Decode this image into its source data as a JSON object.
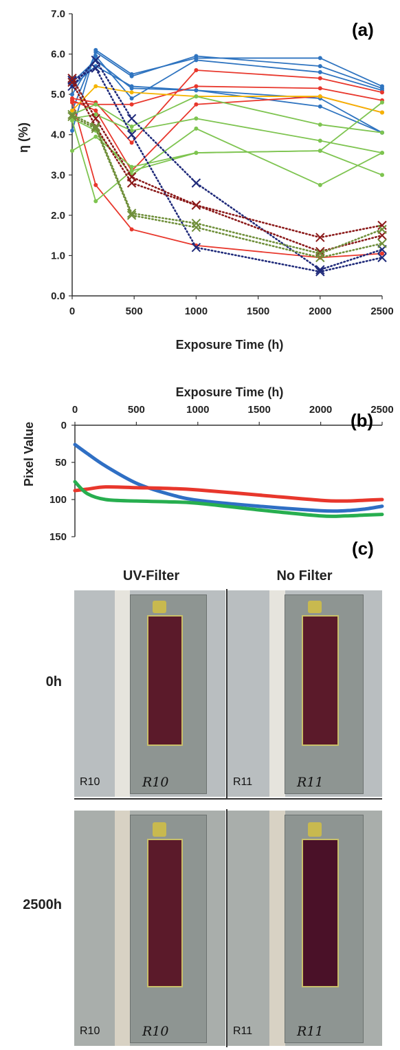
{
  "chart_data": [
    {
      "panel": "(a)",
      "type": "line",
      "xlabel": "Exposure Time (h)",
      "ylabel": "η (%)",
      "xlim": [
        0,
        2500
      ],
      "ylim": [
        0.0,
        7.0
      ],
      "xticks": [
        "0",
        "500",
        "1000",
        "1500",
        "2000",
        "2500"
      ],
      "yticks": [
        "0.0",
        "1.0",
        "2.0",
        "3.0",
        "4.0",
        "5.0",
        "6.0",
        "7.0"
      ],
      "x": [
        0,
        190,
        480,
        1000,
        2000,
        2500
      ],
      "series": [
        {
          "color": "#2f74c0",
          "style": "solid",
          "values": [
            4.1,
            6.1,
            5.5,
            5.9,
            5.9,
            5.2
          ]
        },
        {
          "color": "#2f74c0",
          "style": "solid",
          "values": [
            4.6,
            6.05,
            5.45,
            5.95,
            5.7,
            5.15
          ]
        },
        {
          "color": "#2f74c0",
          "style": "solid",
          "values": [
            5.0,
            5.95,
            4.9,
            5.85,
            5.55,
            5.1
          ]
        },
        {
          "color": "#2f74c0",
          "style": "solid",
          "values": [
            5.2,
            5.7,
            5.2,
            5.1,
            4.7,
            4.05
          ]
        },
        {
          "color": "#2f74c0",
          "style": "solid",
          "values": [
            5.3,
            5.85,
            5.15,
            5.1,
            4.9,
            4.05
          ]
        },
        {
          "color": "#e8372c",
          "style": "solid",
          "values": [
            4.9,
            4.8,
            3.8,
            5.6,
            5.4,
            5.05
          ]
        },
        {
          "color": "#e8372c",
          "style": "solid",
          "values": [
            4.8,
            4.75,
            4.75,
            5.2,
            5.15,
            4.85
          ]
        },
        {
          "color": "#e8372c",
          "style": "solid",
          "values": [
            4.85,
            4.6,
            3.1,
            4.75,
            4.95,
            4.55
          ]
        },
        {
          "color": "#e8372c",
          "style": "solid",
          "values": [
            4.85,
            2.75,
            1.65,
            1.25,
            0.95,
            1.05
          ]
        },
        {
          "color": "#f5b400",
          "style": "solid",
          "values": [
            4.6,
            5.2,
            5.05,
            4.95,
            4.95,
            4.55
          ]
        },
        {
          "color": "#7ec450",
          "style": "solid",
          "values": [
            4.5,
            4.75,
            4.2,
            4.95,
            4.25,
            4.05
          ]
        },
        {
          "color": "#7ec450",
          "style": "solid",
          "values": [
            4.4,
            4.5,
            4.1,
            4.4,
            3.85,
            3.55
          ]
        },
        {
          "color": "#7ec450",
          "style": "solid",
          "values": [
            4.4,
            4.1,
            3.0,
            4.15,
            2.75,
            3.55
          ]
        },
        {
          "color": "#7ec450",
          "style": "solid",
          "values": [
            3.6,
            3.95,
            3.2,
            3.55,
            3.6,
            4.8
          ]
        },
        {
          "color": "#7ec450",
          "style": "solid",
          "values": [
            4.35,
            2.35,
            3.1,
            3.55,
            3.6,
            3.0
          ]
        },
        {
          "color": "#1f2a7a",
          "style": "dotted",
          "marker": "x",
          "values": [
            5.2,
            5.85,
            4.4,
            2.8,
            0.65,
            1.15
          ]
        },
        {
          "color": "#1f2a7a",
          "style": "dotted",
          "marker": "x",
          "values": [
            5.35,
            5.65,
            4.0,
            1.2,
            0.6,
            0.95
          ]
        },
        {
          "color": "#8b1a1a",
          "style": "dotted",
          "marker": "x",
          "values": [
            5.4,
            4.4,
            2.95,
            2.25,
            1.45,
            1.75
          ]
        },
        {
          "color": "#8b1a1a",
          "style": "dotted",
          "marker": "x",
          "values": [
            5.3,
            4.2,
            2.8,
            2.25,
            1.1,
            1.5
          ]
        },
        {
          "color": "#6f8f3a",
          "style": "dotted",
          "marker": "x",
          "values": [
            4.5,
            4.2,
            2.05,
            1.8,
            1.05,
            1.65
          ]
        },
        {
          "color": "#6f8f3a",
          "style": "dotted",
          "marker": "x",
          "values": [
            4.45,
            4.15,
            2.0,
            1.7,
            0.95,
            1.3
          ]
        }
      ]
    },
    {
      "panel": "(b)",
      "type": "line",
      "xlabel": "Exposure Time (h)",
      "ylabel": "Pixel Value",
      "xlim": [
        0,
        2500
      ],
      "ylim": [
        0,
        150
      ],
      "y_inverted": true,
      "x_axis_position": "top",
      "xticks": [
        "0",
        "500",
        "1000",
        "1500",
        "2000",
        "2500"
      ],
      "yticks": [
        "0",
        "50",
        "100",
        "150"
      ],
      "x": [
        0,
        100,
        250,
        500,
        750,
        1000,
        1500,
        2000,
        2200,
        2350,
        2500
      ],
      "series": [
        {
          "color": "#2f6fc4",
          "values": [
            26,
            38,
            55,
            78,
            92,
            101,
            109,
            115,
            115,
            113,
            109
          ]
        },
        {
          "color": "#e8372c",
          "values": [
            88,
            86,
            83,
            84,
            85,
            87,
            94,
            101,
            102,
            101,
            100
          ]
        },
        {
          "color": "#27ae4f",
          "values": [
            76,
            92,
            100,
            102,
            103,
            105,
            114,
            122,
            122,
            121,
            120
          ]
        }
      ]
    }
  ],
  "panel_c": {
    "label": "(c)",
    "columns": [
      "UV-Filter",
      "No Filter"
    ],
    "rows": [
      "0h",
      "2500h"
    ],
    "photos": [
      {
        "row": "0h",
        "col": "UV-Filter",
        "code": "R10",
        "hand": "R10"
      },
      {
        "row": "0h",
        "col": "No Filter",
        "code": "R11",
        "hand": "R11"
      },
      {
        "row": "2500h",
        "col": "UV-Filter",
        "code": "R10",
        "hand": "R10"
      },
      {
        "row": "2500h",
        "col": "No Filter",
        "code": "R11",
        "hand": "R11"
      }
    ]
  }
}
